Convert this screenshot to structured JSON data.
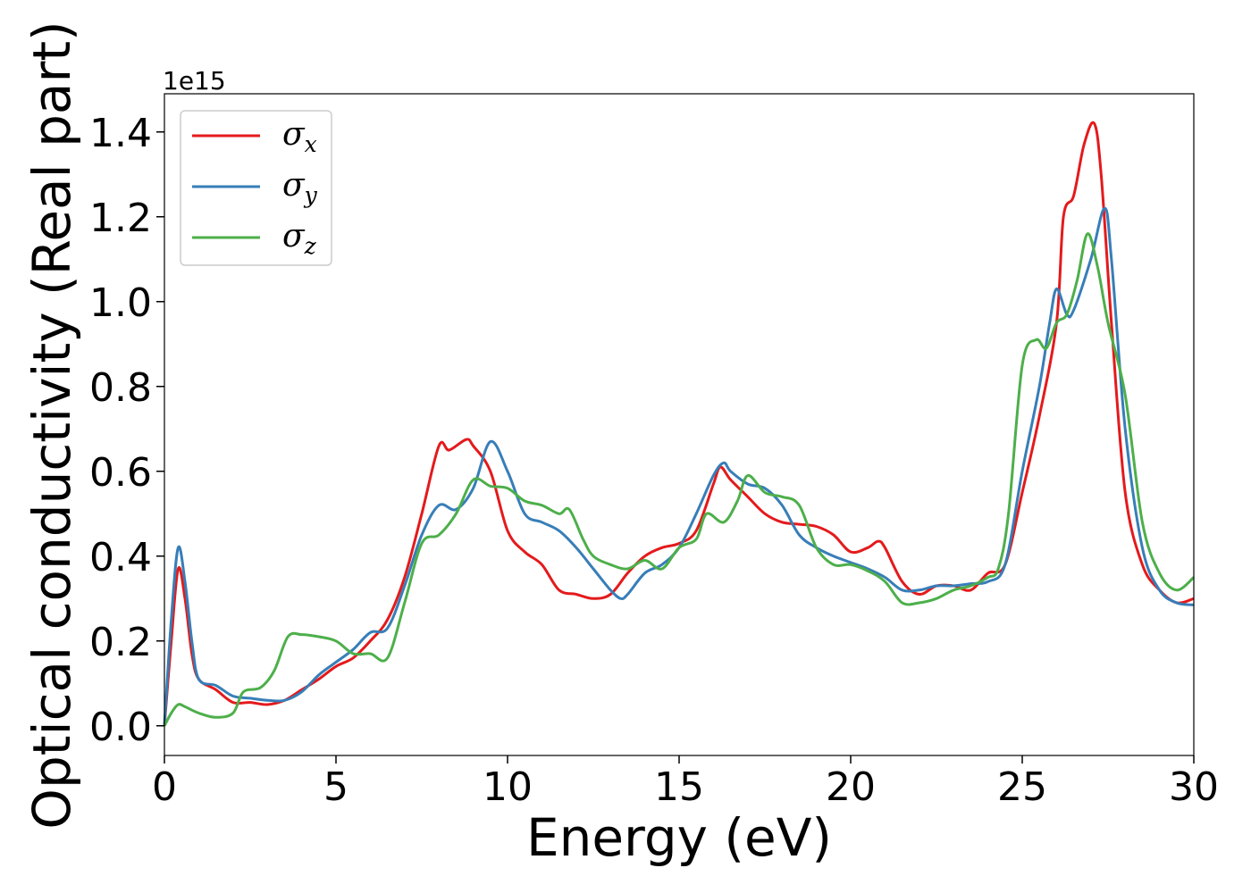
{
  "chart_data": {
    "type": "line",
    "title": "",
    "xlabel": "Energy (eV)",
    "ylabel": "Optical conductivity (Real part)",
    "y_offset_label": "1e15",
    "xlim": [
      0,
      30
    ],
    "ylim": [
      -0.07,
      1.49
    ],
    "xticks": [
      0,
      5,
      10,
      15,
      20,
      25,
      30
    ],
    "xtick_labels": [
      "0",
      "5",
      "10",
      "15",
      "20",
      "25",
      "30"
    ],
    "yticks": [
      0.0,
      0.2,
      0.4,
      0.6,
      0.8,
      1.0,
      1.2,
      1.4
    ],
    "ytick_labels": [
      "0.0",
      "0.2",
      "0.4",
      "0.6",
      "0.8",
      "1.0",
      "1.2",
      "1.4"
    ],
    "grid": false,
    "legend_position": "upper-left",
    "series": [
      {
        "name": "σx",
        "symbol": "σ",
        "sub": "x",
        "color": "#e41a1c",
        "points": [
          [
            0,
            0.0
          ],
          [
            0.2,
            0.2
          ],
          [
            0.4,
            0.37
          ],
          [
            0.6,
            0.3
          ],
          [
            0.8,
            0.17
          ],
          [
            1.0,
            0.11
          ],
          [
            1.5,
            0.085
          ],
          [
            2.0,
            0.055
          ],
          [
            2.5,
            0.055
          ],
          [
            3.0,
            0.05
          ],
          [
            3.5,
            0.06
          ],
          [
            4.0,
            0.085
          ],
          [
            4.5,
            0.11
          ],
          [
            5.0,
            0.14
          ],
          [
            5.5,
            0.16
          ],
          [
            6.0,
            0.2
          ],
          [
            6.5,
            0.25
          ],
          [
            7.0,
            0.35
          ],
          [
            7.5,
            0.5
          ],
          [
            8.0,
            0.66
          ],
          [
            8.3,
            0.65
          ],
          [
            8.8,
            0.675
          ],
          [
            9.0,
            0.66
          ],
          [
            9.5,
            0.6
          ],
          [
            10.0,
            0.46
          ],
          [
            10.5,
            0.41
          ],
          [
            11.0,
            0.38
          ],
          [
            11.5,
            0.32
          ],
          [
            12.0,
            0.31
          ],
          [
            12.5,
            0.3
          ],
          [
            13.0,
            0.31
          ],
          [
            13.5,
            0.36
          ],
          [
            14.0,
            0.4
          ],
          [
            14.5,
            0.42
          ],
          [
            15.0,
            0.43
          ],
          [
            15.5,
            0.46
          ],
          [
            16.0,
            0.57
          ],
          [
            16.2,
            0.61
          ],
          [
            16.5,
            0.58
          ],
          [
            17.0,
            0.54
          ],
          [
            17.5,
            0.5
          ],
          [
            18.0,
            0.48
          ],
          [
            18.5,
            0.475
          ],
          [
            19.0,
            0.47
          ],
          [
            19.5,
            0.45
          ],
          [
            20.0,
            0.41
          ],
          [
            20.5,
            0.42
          ],
          [
            20.8,
            0.435
          ],
          [
            21.0,
            0.42
          ],
          [
            21.5,
            0.34
          ],
          [
            22.0,
            0.31
          ],
          [
            22.5,
            0.33
          ],
          [
            23.0,
            0.33
          ],
          [
            23.5,
            0.32
          ],
          [
            24.0,
            0.36
          ],
          [
            24.5,
            0.38
          ],
          [
            25.0,
            0.55
          ],
          [
            25.5,
            0.73
          ],
          [
            26.0,
            0.95
          ],
          [
            26.2,
            1.2
          ],
          [
            26.5,
            1.25
          ],
          [
            26.8,
            1.37
          ],
          [
            27.1,
            1.42
          ],
          [
            27.3,
            1.3
          ],
          [
            27.6,
            0.95
          ],
          [
            28.0,
            0.55
          ],
          [
            28.5,
            0.38
          ],
          [
            29.0,
            0.32
          ],
          [
            29.5,
            0.29
          ],
          [
            30.0,
            0.3
          ]
        ]
      },
      {
        "name": "σy",
        "symbol": "σ",
        "sub": "y",
        "color": "#377eb8",
        "points": [
          [
            0,
            0.0
          ],
          [
            0.2,
            0.25
          ],
          [
            0.4,
            0.42
          ],
          [
            0.6,
            0.34
          ],
          [
            0.8,
            0.2
          ],
          [
            1.0,
            0.11
          ],
          [
            1.5,
            0.095
          ],
          [
            2.0,
            0.07
          ],
          [
            2.5,
            0.065
          ],
          [
            3.0,
            0.06
          ],
          [
            3.5,
            0.06
          ],
          [
            4.0,
            0.08
          ],
          [
            4.5,
            0.12
          ],
          [
            5.0,
            0.15
          ],
          [
            5.5,
            0.18
          ],
          [
            6.0,
            0.22
          ],
          [
            6.5,
            0.23
          ],
          [
            7.0,
            0.33
          ],
          [
            7.5,
            0.45
          ],
          [
            8.0,
            0.52
          ],
          [
            8.5,
            0.51
          ],
          [
            9.0,
            0.56
          ],
          [
            9.5,
            0.67
          ],
          [
            10.0,
            0.6
          ],
          [
            10.5,
            0.5
          ],
          [
            11.0,
            0.48
          ],
          [
            11.5,
            0.46
          ],
          [
            12.0,
            0.42
          ],
          [
            12.5,
            0.37
          ],
          [
            13.0,
            0.32
          ],
          [
            13.3,
            0.3
          ],
          [
            13.5,
            0.31
          ],
          [
            14.0,
            0.36
          ],
          [
            14.5,
            0.38
          ],
          [
            15.0,
            0.42
          ],
          [
            15.5,
            0.5
          ],
          [
            16.0,
            0.59
          ],
          [
            16.3,
            0.62
          ],
          [
            16.5,
            0.6
          ],
          [
            17.0,
            0.57
          ],
          [
            17.5,
            0.56
          ],
          [
            18.0,
            0.52
          ],
          [
            18.5,
            0.45
          ],
          [
            19.0,
            0.42
          ],
          [
            19.5,
            0.4
          ],
          [
            20.0,
            0.385
          ],
          [
            20.5,
            0.37
          ],
          [
            21.0,
            0.35
          ],
          [
            21.5,
            0.32
          ],
          [
            22.0,
            0.32
          ],
          [
            22.5,
            0.33
          ],
          [
            23.0,
            0.33
          ],
          [
            23.5,
            0.335
          ],
          [
            24.0,
            0.34
          ],
          [
            24.5,
            0.38
          ],
          [
            25.0,
            0.6
          ],
          [
            25.5,
            0.8
          ],
          [
            25.8,
            0.95
          ],
          [
            26.0,
            1.03
          ],
          [
            26.3,
            0.97
          ],
          [
            26.5,
            0.98
          ],
          [
            27.0,
            1.1
          ],
          [
            27.4,
            1.22
          ],
          [
            27.6,
            1.1
          ],
          [
            28.0,
            0.7
          ],
          [
            28.5,
            0.42
          ],
          [
            29.0,
            0.32
          ],
          [
            29.5,
            0.29
          ],
          [
            30.0,
            0.285
          ]
        ]
      },
      {
        "name": "σz",
        "symbol": "σ",
        "sub": "z",
        "color": "#4daf4a",
        "points": [
          [
            0,
            0.0
          ],
          [
            0.2,
            0.03
          ],
          [
            0.4,
            0.05
          ],
          [
            0.6,
            0.045
          ],
          [
            1.0,
            0.03
          ],
          [
            1.5,
            0.02
          ],
          [
            2.0,
            0.03
          ],
          [
            2.3,
            0.08
          ],
          [
            2.8,
            0.09
          ],
          [
            3.2,
            0.13
          ],
          [
            3.6,
            0.21
          ],
          [
            4.0,
            0.215
          ],
          [
            4.5,
            0.21
          ],
          [
            5.0,
            0.2
          ],
          [
            5.5,
            0.17
          ],
          [
            6.0,
            0.17
          ],
          [
            6.5,
            0.16
          ],
          [
            7.0,
            0.29
          ],
          [
            7.5,
            0.43
          ],
          [
            8.0,
            0.45
          ],
          [
            8.5,
            0.5
          ],
          [
            9.0,
            0.58
          ],
          [
            9.5,
            0.565
          ],
          [
            10.0,
            0.56
          ],
          [
            10.5,
            0.53
          ],
          [
            11.0,
            0.52
          ],
          [
            11.5,
            0.5
          ],
          [
            11.8,
            0.51
          ],
          [
            12.2,
            0.44
          ],
          [
            12.5,
            0.4
          ],
          [
            13.0,
            0.38
          ],
          [
            13.5,
            0.37
          ],
          [
            14.0,
            0.39
          ],
          [
            14.5,
            0.37
          ],
          [
            15.0,
            0.42
          ],
          [
            15.5,
            0.44
          ],
          [
            15.8,
            0.5
          ],
          [
            16.3,
            0.48
          ],
          [
            16.7,
            0.53
          ],
          [
            17.0,
            0.59
          ],
          [
            17.5,
            0.55
          ],
          [
            18.0,
            0.54
          ],
          [
            18.5,
            0.52
          ],
          [
            19.0,
            0.42
          ],
          [
            19.5,
            0.38
          ],
          [
            20.0,
            0.38
          ],
          [
            20.5,
            0.365
          ],
          [
            21.0,
            0.34
          ],
          [
            21.5,
            0.29
          ],
          [
            22.0,
            0.29
          ],
          [
            22.5,
            0.3
          ],
          [
            23.0,
            0.32
          ],
          [
            23.5,
            0.33
          ],
          [
            24.0,
            0.35
          ],
          [
            24.3,
            0.37
          ],
          [
            24.6,
            0.5
          ],
          [
            25.0,
            0.85
          ],
          [
            25.4,
            0.91
          ],
          [
            25.7,
            0.89
          ],
          [
            26.0,
            0.95
          ],
          [
            26.3,
            0.97
          ],
          [
            26.6,
            1.05
          ],
          [
            26.9,
            1.16
          ],
          [
            27.2,
            1.08
          ],
          [
            27.5,
            0.95
          ],
          [
            28.0,
            0.78
          ],
          [
            28.5,
            0.48
          ],
          [
            29.0,
            0.36
          ],
          [
            29.5,
            0.32
          ],
          [
            30.0,
            0.35
          ]
        ]
      }
    ]
  }
}
